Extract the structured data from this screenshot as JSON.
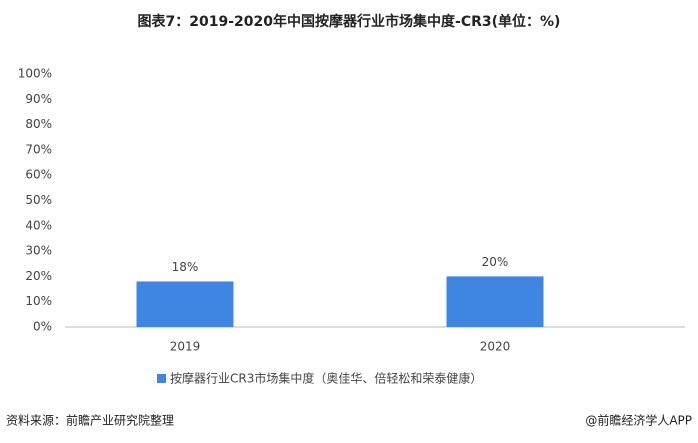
{
  "chart_data": {
    "type": "bar",
    "title": "图表7：2019-2020年中国按摩器行业市场集中度-CR3(单位：%)",
    "categories": [
      "2019",
      "2020"
    ],
    "series": [
      {
        "name": "按摩器行业CR3市场集中度（奥佳华、倍轻松和荣泰健康）",
        "color": "#3f86e3",
        "values": [
          18,
          20
        ],
        "value_labels": [
          "18%",
          "20%"
        ]
      }
    ],
    "ylim": [
      0,
      100
    ],
    "yticks": [
      {
        "value": 0,
        "label": "0%"
      },
      {
        "value": 10,
        "label": "10%"
      },
      {
        "value": 20,
        "label": "20%"
      },
      {
        "value": 30,
        "label": "30%"
      },
      {
        "value": 40,
        "label": "40%"
      },
      {
        "value": 50,
        "label": "50%"
      },
      {
        "value": 60,
        "label": "60%"
      },
      {
        "value": 70,
        "label": "70%"
      },
      {
        "value": 80,
        "label": "80%"
      },
      {
        "value": 90,
        "label": "90%"
      },
      {
        "value": 100,
        "label": "100%"
      }
    ],
    "grid": false,
    "legend": "bottom",
    "source": "资料来源：前瞻产业研究院整理",
    "credit": "@前瞻经济学人APP"
  }
}
